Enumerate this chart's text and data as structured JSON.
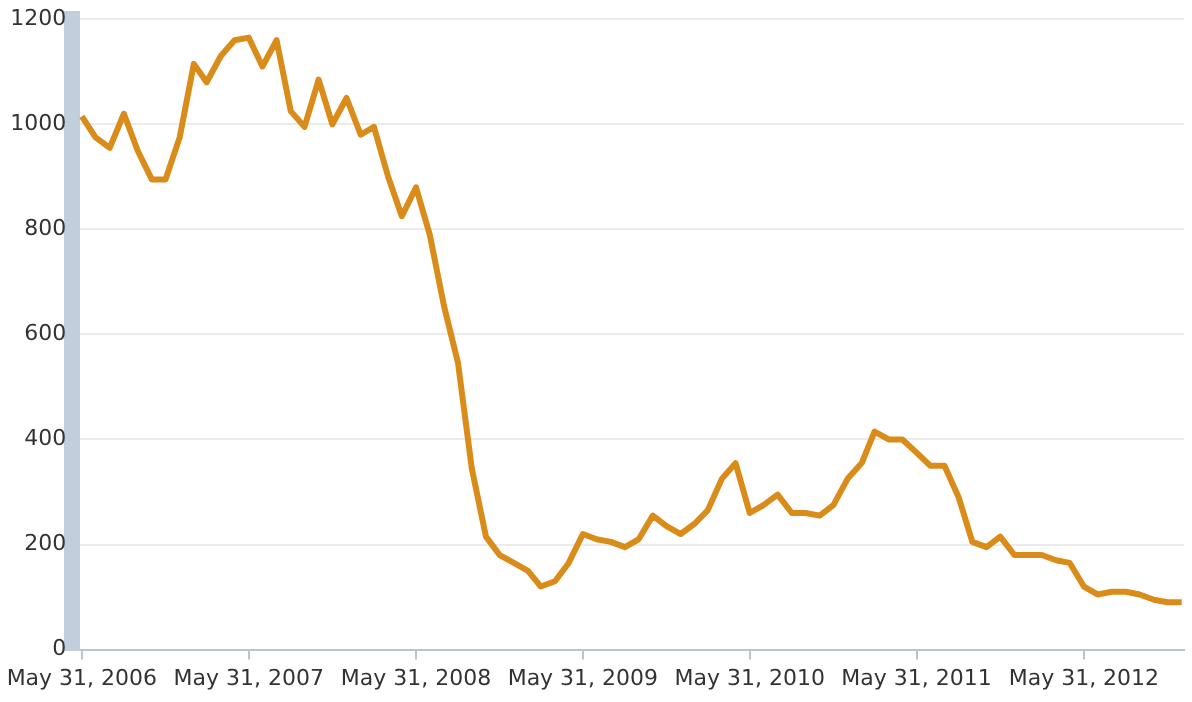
{
  "chart_data": {
    "type": "line",
    "x": [
      "2006-05-31",
      "2006-06-30",
      "2006-07-31",
      "2006-08-31",
      "2006-09-30",
      "2006-10-31",
      "2006-11-30",
      "2006-12-31",
      "2007-01-31",
      "2007-02-28",
      "2007-03-31",
      "2007-04-30",
      "2007-05-31",
      "2007-06-30",
      "2007-07-31",
      "2007-08-31",
      "2007-09-30",
      "2007-10-31",
      "2007-11-30",
      "2007-12-31",
      "2008-01-31",
      "2008-02-29",
      "2008-03-31",
      "2008-04-30",
      "2008-05-31",
      "2008-06-30",
      "2008-07-31",
      "2008-08-31",
      "2008-09-30",
      "2008-10-31",
      "2008-11-30",
      "2008-12-31",
      "2009-01-31",
      "2009-02-28",
      "2009-03-31",
      "2009-04-30",
      "2009-05-31",
      "2009-06-30",
      "2009-07-31",
      "2009-08-31",
      "2009-09-30",
      "2009-10-31",
      "2009-11-30",
      "2009-12-31",
      "2010-01-31",
      "2010-02-28",
      "2010-03-31",
      "2010-04-30",
      "2010-05-31",
      "2010-06-30",
      "2010-07-31",
      "2010-08-31",
      "2010-09-30",
      "2010-10-31",
      "2010-11-30",
      "2010-12-31",
      "2011-01-31",
      "2011-02-28",
      "2011-03-31",
      "2011-04-30",
      "2011-05-31",
      "2011-06-30",
      "2011-07-31",
      "2011-08-31",
      "2011-09-30",
      "2011-10-31",
      "2011-11-30",
      "2011-12-31",
      "2012-01-31",
      "2012-02-29",
      "2012-03-31",
      "2012-04-30",
      "2012-05-31",
      "2012-06-30",
      "2012-07-31",
      "2012-08-31",
      "2012-09-30",
      "2012-10-31",
      "2012-11-30",
      "2012-12-31"
    ],
    "series": [
      {
        "color": "#d98c1a",
        "values": [
          1015,
          975,
          955,
          1020,
          950,
          895,
          895,
          975,
          1115,
          1080,
          1130,
          1160,
          1165,
          1110,
          1160,
          1025,
          995,
          1085,
          1000,
          1050,
          980,
          995,
          900,
          825,
          880,
          790,
          655,
          545,
          345,
          215,
          180,
          165,
          150,
          120,
          130,
          165,
          220,
          210,
          205,
          195,
          210,
          255,
          235,
          220,
          240,
          265,
          325,
          355,
          260,
          275,
          295,
          260,
          260,
          255,
          275,
          325,
          355,
          415,
          400,
          400,
          375,
          350,
          350,
          290,
          205,
          195,
          215,
          180,
          180,
          180,
          170,
          165,
          120,
          105,
          110,
          110,
          105,
          95,
          90,
          90
        ]
      }
    ],
    "xlim": [
      "2006-05-10",
      "2013-01-05"
    ],
    "xticks": [
      {
        "value": "2006-05-31",
        "label": "May 31, 2006"
      },
      {
        "value": "2007-05-31",
        "label": "May 31, 2007"
      },
      {
        "value": "2008-05-31",
        "label": "May 31, 2008"
      },
      {
        "value": "2009-05-31",
        "label": "May 31, 2009"
      },
      {
        "value": "2010-05-31",
        "label": "May 31, 2010"
      },
      {
        "value": "2011-05-31",
        "label": "May 31, 2011"
      },
      {
        "value": "2012-05-31",
        "label": "May 31, 2012"
      }
    ],
    "ylim": [
      0,
      1200
    ],
    "yticks": [
      0,
      200,
      400,
      600,
      800,
      1000,
      1200
    ],
    "grid": "y",
    "marker": "none",
    "line_style": "solid"
  }
}
